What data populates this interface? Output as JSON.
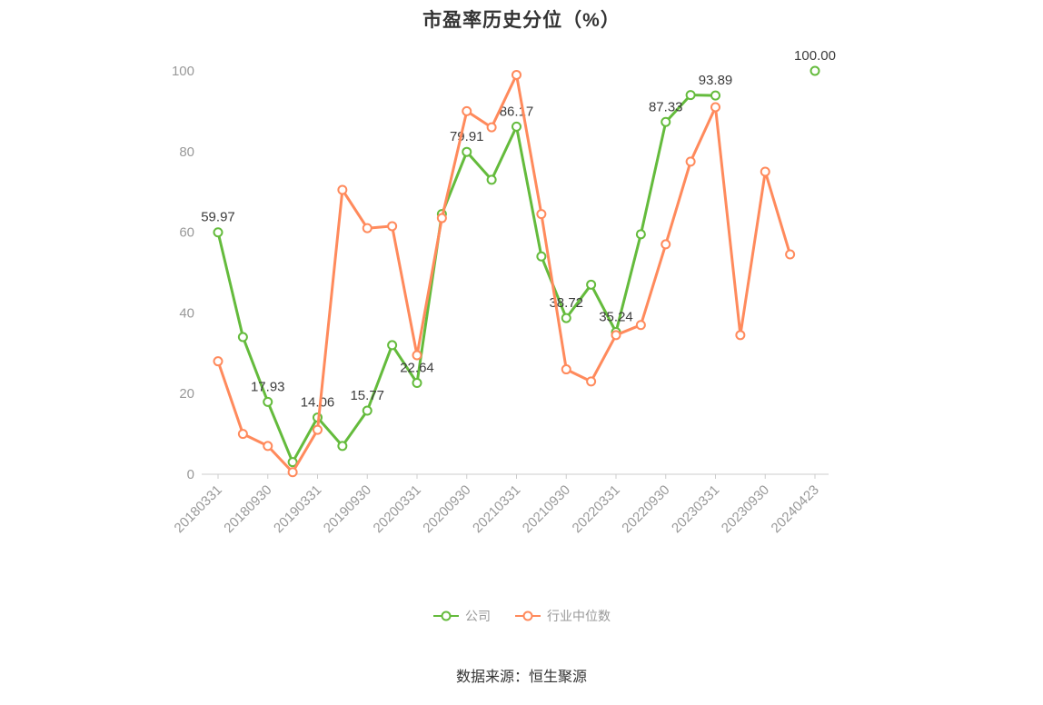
{
  "chart_data": {
    "type": "line",
    "title": "市盈率历史分位（%）",
    "source": "数据来源：恒生聚源",
    "ylim": [
      0,
      100
    ],
    "yticks": [
      0,
      20,
      40,
      60,
      80,
      100
    ],
    "x_tick_labels": [
      "20180331",
      "20180930",
      "20190331",
      "20190930",
      "20200331",
      "20200930",
      "20210331",
      "20210930",
      "20220331",
      "20220930",
      "20230331",
      "20230930",
      "20240423"
    ],
    "x_tick_every": 2,
    "n_points": 25,
    "grid": false,
    "legend_position": "bottom",
    "series": [
      {
        "name": "公司",
        "color": "#64BB3C",
        "values": [
          59.97,
          34,
          17.93,
          3,
          14.06,
          7,
          15.77,
          32,
          22.64,
          64.5,
          79.91,
          73,
          86.17,
          54,
          38.72,
          47,
          35.24,
          59.5,
          87.33,
          94,
          93.89,
          null,
          null,
          null,
          100
        ],
        "point_labels": {
          "0": "59.97",
          "2": "17.93",
          "4": "14.06",
          "6": "15.77",
          "8": "22.64",
          "10": "79.91",
          "12": "86.17",
          "14": "38.72",
          "16": "35.24",
          "18": "87.33",
          "20": "93.89",
          "24": "100.00"
        }
      },
      {
        "name": "行业中位数",
        "color": "#FF8A5C",
        "values": [
          28,
          10,
          7,
          0.5,
          11,
          70.5,
          61,
          61.5,
          29.5,
          63.5,
          90,
          86,
          99,
          64.5,
          26,
          23,
          34.5,
          37,
          57,
          77.5,
          91,
          34.5,
          75,
          54.5,
          null
        ],
        "point_labels": {}
      }
    ]
  }
}
